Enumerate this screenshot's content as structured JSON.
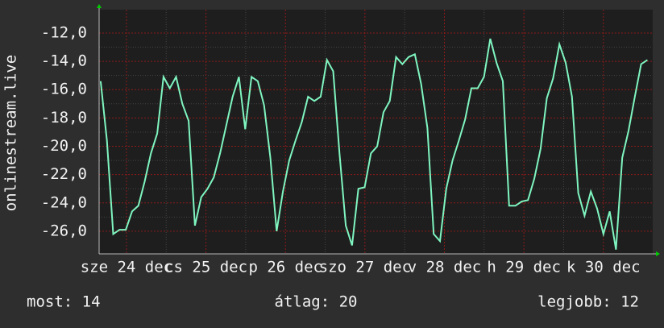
{
  "chart_data": {
    "type": "line",
    "y_label": "onlinestream.live",
    "x": [
      0,
      2,
      4,
      6,
      8,
      10,
      12,
      14,
      16,
      18,
      20,
      22,
      24,
      26,
      28,
      30,
      32,
      34,
      36,
      38,
      40,
      42,
      44,
      46,
      48,
      50,
      52,
      54,
      56,
      58,
      60,
      62,
      64,
      66,
      68,
      70,
      72,
      74,
      76,
      78,
      80,
      82,
      84,
      86,
      88,
      90,
      92,
      94,
      96,
      98,
      100,
      102,
      104,
      106,
      108,
      110,
      112,
      114,
      116,
      118,
      120,
      122,
      124,
      126,
      128,
      130,
      132,
      134,
      136,
      138,
      140,
      142,
      144,
      146,
      148,
      150,
      152,
      154,
      156,
      158,
      160,
      162,
      164,
      166,
      168,
      170,
      172,
      174
    ],
    "series": [
      {
        "color": "#7ff5c0",
        "values": [
          -15.4,
          -19.6,
          -26.2,
          -25.9,
          -25.9,
          -24.6,
          -24.2,
          -22.5,
          -20.5,
          -19.1,
          -15.1,
          -15.9,
          -15.1,
          -17.0,
          -18.2,
          -25.6,
          -23.6,
          -23.0,
          -22.2,
          -20.5,
          -18.5,
          -16.5,
          -15.1,
          -18.8,
          -15.1,
          -15.4,
          -17.1,
          -20.8,
          -26.0,
          -23.2,
          -21.0,
          -19.6,
          -18.3,
          -16.5,
          -16.8,
          -16.5,
          -13.9,
          -14.7,
          -20.5,
          -25.6,
          -27.0,
          -23.0,
          -22.9,
          -20.5,
          -20.0,
          -17.6,
          -16.8,
          -13.7,
          -14.2,
          -13.7,
          -13.5,
          -15.6,
          -18.7,
          -26.2,
          -26.7,
          -23.0,
          -21.0,
          -19.6,
          -18.1,
          -15.9,
          -15.9,
          -15.1,
          -12.4,
          -14.1,
          -15.4,
          -24.2,
          -24.2,
          -23.9,
          -23.8,
          -22.3,
          -20.2,
          -16.6,
          -15.2,
          -12.8,
          -14.1,
          -16.5,
          -23.3,
          -24.9,
          -23.2,
          -24.4,
          -26.2,
          -24.6,
          -27.3,
          -20.8,
          -18.9,
          -16.5,
          -14.2,
          -13.9
        ]
      }
    ],
    "xlim": [
      -0.5,
      175.7
    ],
    "ylim": [
      -27.6,
      -10.35
    ],
    "xticks": [
      {
        "value": 8.2,
        "label": "sze 24 dec"
      },
      {
        "value": 33.5,
        "label": "cs 25 dec"
      },
      {
        "value": 58.8,
        "label": "p 26 dec"
      },
      {
        "value": 84.1,
        "label": "szo 27 dec"
      },
      {
        "value": 109.4,
        "label": "v 28 dec"
      },
      {
        "value": 134.7,
        "label": "h 29 dec"
      },
      {
        "value": 160,
        "label": "k 30 dec"
      }
    ],
    "yticks": [
      {
        "value": -26,
        "label": "-26,0"
      },
      {
        "value": -24,
        "label": "-24,0"
      },
      {
        "value": -22,
        "label": "-22,0"
      },
      {
        "value": -20,
        "label": "-20,0"
      },
      {
        "value": -18,
        "label": "-18,0"
      },
      {
        "value": -16,
        "label": "-16,0"
      },
      {
        "value": -14,
        "label": "-14,0"
      },
      {
        "value": -12,
        "label": "-12,0"
      }
    ],
    "grid": true,
    "footer": [
      "most: 14",
      "átlag: 20",
      "legjobb: 12"
    ]
  }
}
